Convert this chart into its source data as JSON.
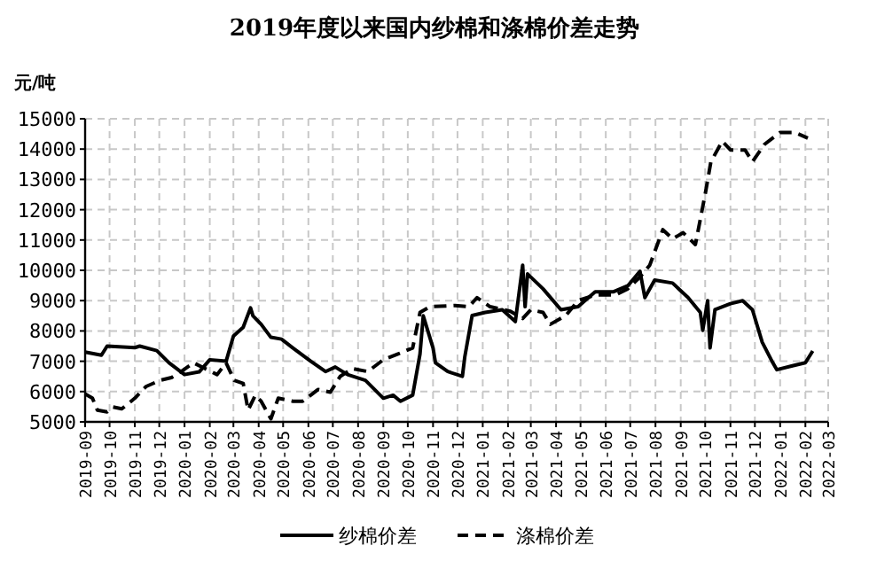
{
  "chart_data": {
    "type": "line",
    "title": "2019年度以来国内纱棉和涤棉价差走势",
    "ylabel": "元/吨",
    "grid": true,
    "legend": "bottom",
    "xlim": [
      "2019-09",
      "2022-03"
    ],
    "xticks": [
      "2019-09",
      "2019-10",
      "2019-11",
      "2019-12",
      "2020-01",
      "2020-02",
      "2020-03",
      "2020-04",
      "2020-05",
      "2020-06",
      "2020-07",
      "2020-08",
      "2020-09",
      "2020-10",
      "2020-11",
      "2020-12",
      "2021-01",
      "2021-02",
      "2021-03",
      "2021-04",
      "2021-05",
      "2021-06",
      "2021-07",
      "2021-08",
      "2021-09",
      "2021-10",
      "2021-11",
      "2021-12",
      "2022-01",
      "2022-02",
      "2022-03"
    ],
    "ylim": [
      5000,
      15000
    ],
    "yticks": [
      5000,
      6000,
      7000,
      8000,
      9000,
      10000,
      11000,
      12000,
      13000,
      14000,
      15000
    ],
    "series": [
      {
        "name": "纱棉价差",
        "color": "#000000",
        "line_style": "solid",
        "x": [
          "2019-09-01",
          "2019-09-21",
          "2019-09-28",
          "2019-11-01",
          "2019-11-07",
          "2019-11-28",
          "2019-12-13",
          "2020-01-01",
          "2020-01-19",
          "2020-02-01",
          "2020-02-21",
          "2020-03-01",
          "2020-03-13",
          "2020-03-22",
          "2020-03-25",
          "2020-04-04",
          "2020-04-16",
          "2020-04-29",
          "2020-05-13",
          "2020-06-04",
          "2020-06-22",
          "2020-07-04",
          "2020-07-19",
          "2020-08-10",
          "2020-09-01",
          "2020-09-13",
          "2020-09-22",
          "2020-10-07",
          "2020-10-16",
          "2020-10-20",
          "2020-11-01",
          "2020-11-04",
          "2020-11-19",
          "2020-12-07",
          "2020-12-10",
          "2020-12-19",
          "2021-01-04",
          "2021-01-25",
          "2021-02-10",
          "2021-02-19",
          "2021-02-22",
          "2021-02-25",
          "2021-03-16",
          "2021-04-07",
          "2021-04-28",
          "2021-05-19",
          "2021-06-10",
          "2021-06-28",
          "2021-07-13",
          "2021-07-19",
          "2021-07-31",
          "2021-08-22",
          "2021-09-10",
          "2021-09-25",
          "2021-09-28",
          "2021-10-04",
          "2021-10-07",
          "2021-10-13",
          "2021-11-01",
          "2021-11-16",
          "2021-11-28",
          "2021-12-10",
          "2021-12-23",
          "2021-12-28",
          "2022-01-16",
          "2022-02-01",
          "2022-02-10"
        ],
        "values": [
          7300,
          7200,
          7500,
          7450,
          7500,
          7350,
          6950,
          6560,
          6650,
          7050,
          7000,
          7830,
          8120,
          8760,
          8500,
          8220,
          7790,
          7730,
          7440,
          7000,
          6660,
          6810,
          6560,
          6370,
          5780,
          5880,
          5680,
          5880,
          7240,
          8500,
          7440,
          6950,
          6660,
          6500,
          7150,
          8510,
          8610,
          8700,
          8310,
          10170,
          8800,
          9880,
          9390,
          8700,
          8800,
          9290,
          9290,
          9490,
          9970,
          9100,
          9680,
          9580,
          9100,
          8610,
          8020,
          9000,
          7440,
          8700,
          8900,
          9000,
          8700,
          7630,
          6950,
          6720,
          6850,
          6950,
          7340
        ]
      },
      {
        "name": "涤棉价差",
        "color": "#000000",
        "line_style": "dashed",
        "x": [
          "2019-09-01",
          "2019-09-10",
          "2019-09-16",
          "2019-09-28",
          "2019-10-05",
          "2019-10-16",
          "2019-11-01",
          "2019-11-15",
          "2019-12-02",
          "2019-12-16",
          "2019-12-28",
          "2020-01-12",
          "2020-01-26",
          "2020-02-10",
          "2020-02-21",
          "2020-03-02",
          "2020-03-13",
          "2020-03-19",
          "2020-03-28",
          "2020-04-04",
          "2020-04-16",
          "2020-04-25",
          "2020-05-13",
          "2020-05-25",
          "2020-06-13",
          "2020-06-28",
          "2020-07-10",
          "2020-07-25",
          "2020-08-13",
          "2020-09-01",
          "2020-09-19",
          "2020-10-07",
          "2020-10-16",
          "2020-10-28",
          "2020-11-28",
          "2020-12-15",
          "2020-12-25",
          "2021-01-10",
          "2021-02-04",
          "2021-02-19",
          "2021-03-01",
          "2021-03-16",
          "2021-03-25",
          "2021-04-13",
          "2021-04-28",
          "2021-05-19",
          "2021-06-13",
          "2021-06-28",
          "2021-07-13",
          "2021-07-25",
          "2021-08-10",
          "2021-08-22",
          "2021-09-04",
          "2021-09-19",
          "2021-10-01",
          "2021-10-08",
          "2021-10-22",
          "2021-11-01",
          "2021-11-19",
          "2021-11-28",
          "2021-12-13",
          "2022-01-01",
          "2022-01-19",
          "2022-02-04"
        ],
        "values": [
          5920,
          5780,
          5390,
          5330,
          5490,
          5430,
          5780,
          6170,
          6370,
          6460,
          6660,
          6950,
          6760,
          6560,
          6950,
          6370,
          6270,
          5390,
          5880,
          5680,
          5100,
          5780,
          5680,
          5680,
          6070,
          5980,
          6500,
          6760,
          6660,
          7050,
          7240,
          7440,
          8610,
          8800,
          8840,
          8800,
          9100,
          8800,
          8650,
          8410,
          8700,
          8610,
          8220,
          8510,
          9000,
          9190,
          9190,
          9390,
          9780,
          10170,
          11340,
          11040,
          11240,
          10850,
          12510,
          13580,
          14260,
          13970,
          13970,
          13580,
          14160,
          14550,
          14550,
          14360
        ]
      }
    ]
  }
}
